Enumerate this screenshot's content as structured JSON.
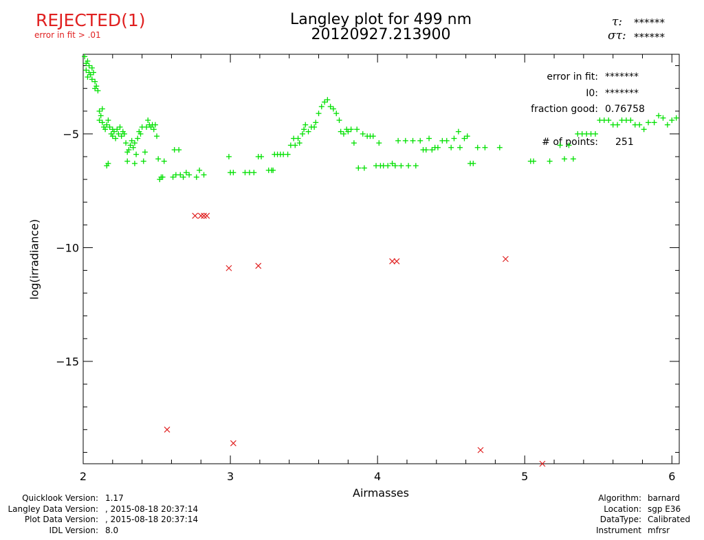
{
  "status": {
    "label": "REJECTED(1)",
    "note": "error in fit > .01",
    "color": "#e02020"
  },
  "header": {
    "title_line1": "Langley plot for 499 nm",
    "title_line2": "20120927.213900",
    "tau_label": "τ:",
    "tau_value": "******",
    "sigma_label": "στ:",
    "sigma_value": "******"
  },
  "fit_info": {
    "error_label": "error in fit:",
    "error_value": "*******",
    "i0_label": "I0:",
    "i0_value": "*******",
    "fraction_label": "fraction good:",
    "fraction_value": "0.76758",
    "points_label": "# of points:",
    "points_value": "251"
  },
  "chart_data": {
    "type": "scatter",
    "title": "Langley plot for 499 nm",
    "xlabel": "Airmasses",
    "ylabel": "log(irradiance)",
    "xlim": [
      2,
      6.05
    ],
    "ylim": [
      -19.5,
      -1.5
    ],
    "xticks": [
      2,
      3,
      4,
      5,
      6
    ],
    "yticks": [
      -15,
      -10,
      -5
    ],
    "grid": false,
    "series": [
      {
        "marker": "+",
        "color": "#00e000",
        "points": [
          [
            2.01,
            -1.6
          ],
          [
            2.02,
            -1.9
          ],
          [
            2.02,
            -2.2
          ],
          [
            2.03,
            -1.8
          ],
          [
            2.03,
            -2.5
          ],
          [
            2.04,
            -2.0
          ],
          [
            2.04,
            -2.3
          ],
          [
            2.05,
            -2.4
          ],
          [
            2.06,
            -2.1
          ],
          [
            2.06,
            -2.6
          ],
          [
            2.07,
            -2.3
          ],
          [
            2.08,
            -2.7
          ],
          [
            2.08,
            -3.0
          ],
          [
            2.09,
            -2.9
          ],
          [
            2.1,
            -3.1
          ],
          [
            2.11,
            -4.0
          ],
          [
            2.11,
            -4.4
          ],
          [
            2.12,
            -4.2
          ],
          [
            2.13,
            -4.5
          ],
          [
            2.13,
            -3.9
          ],
          [
            2.14,
            -4.7
          ],
          [
            2.15,
            -4.8
          ],
          [
            2.16,
            -4.6
          ],
          [
            2.16,
            -6.4
          ],
          [
            2.17,
            -6.3
          ],
          [
            2.17,
            -4.4
          ],
          [
            2.18,
            -4.7
          ],
          [
            2.19,
            -5.0
          ],
          [
            2.2,
            -4.8
          ],
          [
            2.2,
            -5.1
          ],
          [
            2.21,
            -4.9
          ],
          [
            2.22,
            -5.2
          ],
          [
            2.23,
            -4.8
          ],
          [
            2.24,
            -5.0
          ],
          [
            2.25,
            -4.7
          ],
          [
            2.26,
            -5.1
          ],
          [
            2.27,
            -4.9
          ],
          [
            2.28,
            -5.0
          ],
          [
            2.29,
            -5.4
          ],
          [
            2.3,
            -5.8
          ],
          [
            2.3,
            -6.2
          ],
          [
            2.31,
            -5.7
          ],
          [
            2.32,
            -5.5
          ],
          [
            2.33,
            -5.3
          ],
          [
            2.34,
            -5.6
          ],
          [
            2.35,
            -5.4
          ],
          [
            2.35,
            -6.3
          ],
          [
            2.36,
            -5.9
          ],
          [
            2.37,
            -5.2
          ],
          [
            2.38,
            -4.9
          ],
          [
            2.39,
            -5.0
          ],
          [
            2.4,
            -4.7
          ],
          [
            2.41,
            -6.2
          ],
          [
            2.42,
            -5.8
          ],
          [
            2.43,
            -4.7
          ],
          [
            2.44,
            -4.4
          ],
          [
            2.45,
            -4.6
          ],
          [
            2.46,
            -4.7
          ],
          [
            2.47,
            -4.6
          ],
          [
            2.48,
            -4.8
          ],
          [
            2.49,
            -4.6
          ],
          [
            2.5,
            -5.1
          ],
          [
            2.51,
            -6.1
          ],
          [
            2.52,
            -7.0
          ],
          [
            2.53,
            -6.9
          ],
          [
            2.54,
            -6.9
          ],
          [
            2.55,
            -6.2
          ],
          [
            2.61,
            -6.9
          ],
          [
            2.62,
            -5.7
          ],
          [
            2.63,
            -6.8
          ],
          [
            2.65,
            -5.7
          ],
          [
            2.66,
            -6.8
          ],
          [
            2.68,
            -6.9
          ],
          [
            2.7,
            -6.7
          ],
          [
            2.72,
            -6.8
          ],
          [
            2.77,
            -6.9
          ],
          [
            2.79,
            -6.6
          ],
          [
            2.82,
            -6.8
          ],
          [
            2.99,
            -6.0
          ],
          [
            3.0,
            -6.7
          ],
          [
            3.02,
            -6.7
          ],
          [
            3.1,
            -6.7
          ],
          [
            3.13,
            -6.7
          ],
          [
            3.16,
            -6.7
          ],
          [
            3.19,
            -6.0
          ],
          [
            3.21,
            -6.0
          ],
          [
            3.26,
            -6.6
          ],
          [
            3.28,
            -6.6
          ],
          [
            3.29,
            -6.6
          ],
          [
            3.3,
            -5.9
          ],
          [
            3.32,
            -5.9
          ],
          [
            3.34,
            -5.9
          ],
          [
            3.36,
            -5.9
          ],
          [
            3.39,
            -5.9
          ],
          [
            3.41,
            -5.5
          ],
          [
            3.43,
            -5.2
          ],
          [
            3.44,
            -5.5
          ],
          [
            3.46,
            -5.2
          ],
          [
            3.47,
            -5.4
          ],
          [
            3.49,
            -5.0
          ],
          [
            3.5,
            -4.8
          ],
          [
            3.51,
            -4.6
          ],
          [
            3.53,
            -4.9
          ],
          [
            3.55,
            -4.7
          ],
          [
            3.57,
            -4.7
          ],
          [
            3.58,
            -4.5
          ],
          [
            3.6,
            -4.1
          ],
          [
            3.62,
            -3.8
          ],
          [
            3.64,
            -3.6
          ],
          [
            3.66,
            -3.5
          ],
          [
            3.68,
            -3.8
          ],
          [
            3.7,
            -3.9
          ],
          [
            3.72,
            -4.1
          ],
          [
            3.74,
            -4.4
          ],
          [
            3.75,
            -4.9
          ],
          [
            3.77,
            -5.0
          ],
          [
            3.79,
            -4.8
          ],
          [
            3.8,
            -4.9
          ],
          [
            3.82,
            -4.8
          ],
          [
            3.84,
            -5.4
          ],
          [
            3.86,
            -4.8
          ],
          [
            3.87,
            -6.5
          ],
          [
            3.9,
            -5.0
          ],
          [
            3.91,
            -6.5
          ],
          [
            3.93,
            -5.1
          ],
          [
            3.95,
            -5.1
          ],
          [
            3.97,
            -5.1
          ],
          [
            3.99,
            -6.4
          ],
          [
            4.01,
            -5.4
          ],
          [
            4.02,
            -6.4
          ],
          [
            4.04,
            -6.4
          ],
          [
            4.07,
            -6.4
          ],
          [
            4.1,
            -6.3
          ],
          [
            4.12,
            -6.4
          ],
          [
            4.14,
            -5.3
          ],
          [
            4.16,
            -6.4
          ],
          [
            4.19,
            -5.3
          ],
          [
            4.21,
            -6.4
          ],
          [
            4.24,
            -5.3
          ],
          [
            4.26,
            -6.4
          ],
          [
            4.29,
            -5.3
          ],
          [
            4.31,
            -5.7
          ],
          [
            4.33,
            -5.7
          ],
          [
            4.35,
            -5.2
          ],
          [
            4.37,
            -5.7
          ],
          [
            4.39,
            -5.6
          ],
          [
            4.41,
            -5.6
          ],
          [
            4.44,
            -5.3
          ],
          [
            4.47,
            -5.3
          ],
          [
            4.5,
            -5.6
          ],
          [
            4.52,
            -5.2
          ],
          [
            4.55,
            -4.9
          ],
          [
            4.56,
            -5.6
          ],
          [
            4.59,
            -5.2
          ],
          [
            4.61,
            -5.1
          ],
          [
            4.63,
            -6.3
          ],
          [
            4.65,
            -6.3
          ],
          [
            4.68,
            -5.6
          ],
          [
            4.73,
            -5.6
          ],
          [
            4.83,
            -5.6
          ],
          [
            5.04,
            -6.2
          ],
          [
            5.06,
            -6.2
          ],
          [
            5.17,
            -6.2
          ],
          [
            5.24,
            -5.5
          ],
          [
            5.27,
            -6.1
          ],
          [
            5.3,
            -5.5
          ],
          [
            5.33,
            -6.1
          ],
          [
            5.36,
            -5.0
          ],
          [
            5.39,
            -5.0
          ],
          [
            5.42,
            -5.0
          ],
          [
            5.45,
            -5.0
          ],
          [
            5.48,
            -5.0
          ],
          [
            5.51,
            -4.4
          ],
          [
            5.54,
            -4.4
          ],
          [
            5.57,
            -4.4
          ],
          [
            5.6,
            -4.6
          ],
          [
            5.63,
            -4.6
          ],
          [
            5.66,
            -4.4
          ],
          [
            5.69,
            -4.4
          ],
          [
            5.72,
            -4.4
          ],
          [
            5.75,
            -4.6
          ],
          [
            5.78,
            -4.6
          ],
          [
            5.81,
            -4.8
          ],
          [
            5.84,
            -4.5
          ],
          [
            5.88,
            -4.5
          ],
          [
            5.91,
            -4.2
          ],
          [
            5.94,
            -4.3
          ],
          [
            5.97,
            -4.6
          ],
          [
            6.0,
            -4.4
          ],
          [
            6.03,
            -4.3
          ]
        ]
      },
      {
        "marker": "x",
        "color": "#e02020",
        "points": [
          [
            2.57,
            -18.0
          ],
          [
            2.76,
            -8.6
          ],
          [
            2.8,
            -8.6
          ],
          [
            2.82,
            -8.6
          ],
          [
            2.84,
            -8.6
          ],
          [
            2.99,
            -10.9
          ],
          [
            3.02,
            -18.6
          ],
          [
            3.19,
            -10.8
          ],
          [
            4.1,
            -10.6
          ],
          [
            4.13,
            -10.6
          ],
          [
            4.7,
            -18.9
          ],
          [
            4.87,
            -10.5
          ],
          [
            5.12,
            -19.5
          ]
        ]
      }
    ]
  },
  "footer": {
    "left": [
      {
        "label": "Quicklook Version:",
        "value": "1.17"
      },
      {
        "label": "Langley Data Version:",
        "value": ", 2015-08-18 20:37:14"
      },
      {
        "label": "Plot Data Version:",
        "value": ", 2015-08-18 20:37:14"
      },
      {
        "label": "IDL Version:",
        "value": "8.0"
      }
    ],
    "right": [
      {
        "label": "Algorithm:",
        "value": "barnard"
      },
      {
        "label": "Location:",
        "value": "sgp E36"
      },
      {
        "label": "DataType:",
        "value": "Calibrated"
      },
      {
        "label": "Instrument",
        "value": "mfrsr"
      }
    ]
  }
}
